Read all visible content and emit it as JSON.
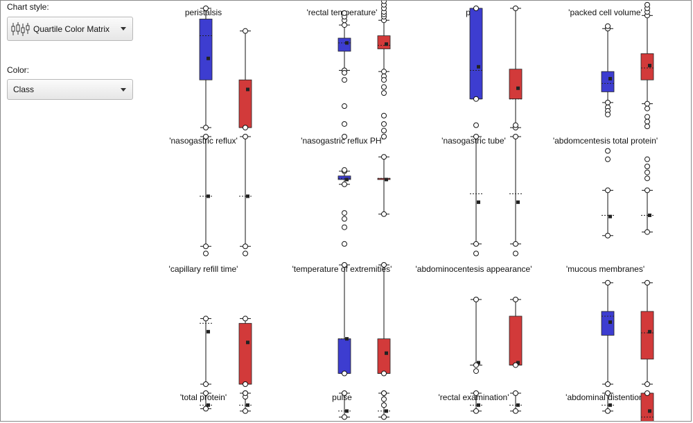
{
  "controls": {
    "chart_style_label": "Chart style:",
    "chart_style_value": "Quartile Color Matrix",
    "chart_style_icon": "boxplot-icon",
    "color_label": "Color:",
    "color_value": "Class"
  },
  "colors": {
    "class_a": "#3d3dd0",
    "class_b": "#d23a3a"
  },
  "chart_data": [
    {
      "type": "box",
      "title": "peristalsis",
      "series": [
        {
          "whisker_low": 0,
          "q1": 0.4,
          "median": 0.77,
          "q3": 0.91,
          "whisker_high": 1,
          "mean": 0.58,
          "outliers_low": [],
          "outliers_high": []
        },
        {
          "whisker_low": 0,
          "q1": 0,
          "median": 0,
          "q3": 0.4,
          "whisker_high": 0.81,
          "mean": 0.32,
          "outliers_low": [],
          "outliers_high": []
        }
      ]
    },
    {
      "type": "box",
      "title": "'rectal temperature'",
      "series": [
        {
          "whisker_low": 0.48,
          "q1": 0.64,
          "median": 0.71,
          "q3": 0.75,
          "whisker_high": 0.86,
          "mean": 0.71,
          "outliers_low": [
            0.4,
            0.18,
            0.03,
            0.46
          ],
          "outliers_high": [
            0.9,
            0.93,
            0.96
          ]
        },
        {
          "whisker_low": 0.47,
          "q1": 0.66,
          "median": 0.69,
          "q3": 0.77,
          "whisker_high": 0.9,
          "mean": 0.7,
          "outliers_low": [
            0.43,
            0.4,
            0.34,
            0.29,
            0.03,
            0.1
          ],
          "outliers_high": [
            0.93,
            0.95,
            0.97,
            1.0,
            1.03,
            1.06
          ]
        }
      ]
    },
    {
      "type": "box",
      "title": "pain",
      "series": [
        {
          "whisker_low": 0.24,
          "q1": 0.24,
          "median": 0.48,
          "q3": 1.0,
          "whisker_high": 1.0,
          "mean": 0.51,
          "outliers_low": [
            0.02
          ],
          "outliers_high": []
        },
        {
          "whisker_low": 0,
          "q1": 0.24,
          "median": 0.24,
          "q3": 0.49,
          "whisker_high": 1.0,
          "mean": 0.33,
          "outliers_low": [
            0.02
          ],
          "outliers_high": []
        }
      ]
    },
    {
      "type": "box",
      "title": "'packed cell volume'",
      "series": [
        {
          "whisker_low": 0.21,
          "q1": 0.3,
          "median": 0.37,
          "q3": 0.47,
          "whisker_high": 0.83,
          "mean": 0.41,
          "outliers_low": [
            0.17,
            0.14,
            0.11
          ],
          "outliers_high": [
            0.85
          ]
        },
        {
          "whisker_low": 0.2,
          "q1": 0.4,
          "median": 0.5,
          "q3": 0.62,
          "whisker_high": 0.94,
          "mean": 0.52,
          "outliers_low": [
            0.16,
            0.09,
            0.05,
            0.01
          ],
          "outliers_high": [
            0.97,
            1.0,
            1.03
          ]
        }
      ]
    },
    {
      "type": "box",
      "title": "'nasogastric reflux'",
      "series": [
        {
          "whisker_low": 0.08,
          "q1": 0.5,
          "median": 0.5,
          "q3": 0.5,
          "whisker_high": 1.0,
          "mean": 0.5,
          "outliers_low": [
            0.02
          ],
          "outliers_high": []
        },
        {
          "whisker_low": 0.08,
          "q1": 0.5,
          "median": 0.5,
          "q3": 0.5,
          "whisker_high": 1.0,
          "mean": 0.5,
          "outliers_low": [
            0.02
          ],
          "outliers_high": []
        }
      ]
    },
    {
      "type": "box",
      "title": "'nasogastric reflux PH'",
      "series": [
        {
          "whisker_low": 0.6,
          "q1": 0.64,
          "median": 0.65,
          "q3": 0.67,
          "whisker_high": 0.71,
          "mean": 0.64,
          "outliers_low": [
            0.36,
            0.31,
            0.24,
            0.1
          ],
          "outliers_high": [
            0.72,
            1.0
          ]
        },
        {
          "whisker_low": 0.35,
          "q1": 0.64,
          "median": 0.65,
          "q3": 0.65,
          "whisker_high": 0.83,
          "mean": 0.64,
          "outliers_low": [],
          "outliers_high": [
            1.0,
            1.05
          ]
        }
      ]
    },
    {
      "type": "box",
      "title": "'nasogastric tube'",
      "series": [
        {
          "whisker_low": 0.1,
          "q1": 0.52,
          "median": 0.52,
          "q3": 0.52,
          "whisker_high": 1.0,
          "mean": 0.45,
          "outliers_low": [
            0.02
          ],
          "outliers_high": []
        },
        {
          "whisker_low": 0.1,
          "q1": 0.52,
          "median": 0.52,
          "q3": 0.52,
          "whisker_high": 1.0,
          "mean": 0.45,
          "outliers_low": [
            0.02
          ],
          "outliers_high": []
        }
      ]
    },
    {
      "type": "box",
      "title": "'abdomcentesis total protein'",
      "series": [
        {
          "whisker_low": 0.17,
          "q1": 0.34,
          "median": 0.34,
          "q3": 0.34,
          "whisker_high": 0.55,
          "mean": 0.33,
          "outliers_low": [],
          "outliers_high": [
            0.81,
            0.88
          ]
        },
        {
          "whisker_low": 0.2,
          "q1": 0.34,
          "median": 0.34,
          "q3": 0.34,
          "whisker_high": 0.55,
          "mean": 0.34,
          "outliers_low": [],
          "outliers_high": [
            0.65,
            0.7,
            0.75,
            0.81
          ]
        }
      ]
    },
    {
      "type": "box",
      "title": "'capillary refill time'",
      "series": [
        {
          "whisker_low": 0,
          "q1": 0.51,
          "median": 0.51,
          "q3": 0.51,
          "whisker_high": 0.55,
          "mean": 0.44,
          "outliers_low": [],
          "outliers_high": []
        },
        {
          "whisker_low": 0,
          "q1": 0,
          "median": 0,
          "q3": 0.51,
          "whisker_high": 0.55,
          "mean": 0.35,
          "outliers_low": [],
          "outliers_high": []
        }
      ]
    },
    {
      "type": "box",
      "title": "'temperature of extremities'",
      "series": [
        {
          "whisker_low": 0.09,
          "q1": 0.09,
          "median": 0.38,
          "q3": 0.38,
          "whisker_high": 1.0,
          "mean": 0.38,
          "outliers_low": [],
          "outliers_high": []
        },
        {
          "whisker_low": 0.09,
          "q1": 0.09,
          "median": 0.09,
          "q3": 0.38,
          "whisker_high": 1.0,
          "mean": 0.26,
          "outliers_low": [],
          "outliers_high": []
        }
      ]
    },
    {
      "type": "box",
      "title": "'abdominocentesis appearance'",
      "series": [
        {
          "whisker_low": 0.16,
          "q1": 0.16,
          "median": 0.16,
          "q3": 0.16,
          "whisker_high": 0.71,
          "mean": 0.18,
          "outliers_low": [
            0.11
          ],
          "outliers_high": []
        },
        {
          "whisker_low": 0.16,
          "q1": 0.16,
          "median": 0.16,
          "q3": 0.57,
          "whisker_high": 0.71,
          "mean": 0.18,
          "outliers_low": [],
          "outliers_high": []
        }
      ]
    },
    {
      "type": "box",
      "title": "'mucous membranes'",
      "series": [
        {
          "whisker_low": 0.0,
          "q1": 0.41,
          "median": 0.57,
          "q3": 0.61,
          "whisker_high": 0.85,
          "mean": 0.52,
          "outliers_low": [],
          "outliers_high": []
        },
        {
          "whisker_low": 0.0,
          "q1": 0.21,
          "median": 0.43,
          "q3": 0.61,
          "whisker_high": 0.85,
          "mean": 0.44,
          "outliers_low": [],
          "outliers_high": []
        }
      ]
    },
    {
      "type": "box",
      "title": "'total protein'",
      "series": [
        {
          "whisker_low": 0.87,
          "q1": 0.9,
          "median": 0.9,
          "q3": 0.9,
          "whisker_high": 1.0,
          "mean": 0.9,
          "outliers_low": [],
          "outliers_high": []
        },
        {
          "whisker_low": 0.85,
          "q1": 0.9,
          "median": 0.9,
          "q3": 0.9,
          "whisker_high": 1.0,
          "mean": 0.9,
          "outliers_low": [],
          "outliers_high": [
            0.97,
            1.0
          ]
        }
      ]
    },
    {
      "type": "box",
      "title": "pulse",
      "series": [
        {
          "whisker_low": 0.8,
          "q1": 0.85,
          "median": 0.85,
          "q3": 0.85,
          "whisker_high": 1.0,
          "mean": 0.85,
          "outliers_low": [],
          "outliers_high": []
        },
        {
          "whisker_low": 0.8,
          "q1": 0.85,
          "median": 0.85,
          "q3": 0.85,
          "whisker_high": 1.0,
          "mean": 0.85,
          "outliers_low": [],
          "outliers_high": [
            0.9,
            0.95,
            1.0
          ]
        }
      ]
    },
    {
      "type": "box",
      "title": "'rectal examination'",
      "series": [
        {
          "whisker_low": 0.85,
          "q1": 0.9,
          "median": 0.9,
          "q3": 0.9,
          "whisker_high": 1.0,
          "mean": 0.9,
          "outliers_low": [],
          "outliers_high": []
        },
        {
          "whisker_low": 0.85,
          "q1": 0.9,
          "median": 0.9,
          "q3": 0.9,
          "whisker_high": 1.0,
          "mean": 0.9,
          "outliers_low": [],
          "outliers_high": []
        }
      ]
    },
    {
      "type": "box",
      "title": "'abdominal distention'",
      "series": [
        {
          "whisker_low": 0.85,
          "q1": 0.9,
          "median": 0.9,
          "q3": 0.9,
          "whisker_high": 1.0,
          "mean": 0.9,
          "outliers_low": [],
          "outliers_high": []
        },
        {
          "whisker_low": 0.7,
          "q1": 0.7,
          "median": 0.8,
          "q3": 1.0,
          "whisker_high": 1.0,
          "mean": 0.85,
          "outliers_low": [],
          "outliers_high": []
        }
      ]
    }
  ]
}
